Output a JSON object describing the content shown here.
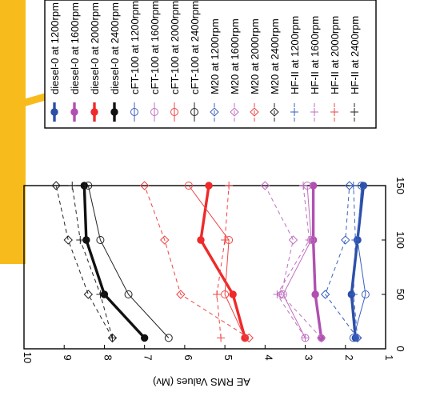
{
  "chart_data": {
    "type": "line",
    "orientation": "rotated-90-ccw",
    "ylabel": "AE RMS Values (Mv)",
    "xlabel": "",
    "xlim": [
      0,
      150
    ],
    "ylim": [
      1,
      10
    ],
    "x_ticks": [
      "0",
      "50",
      "100",
      "150"
    ],
    "y_ticks": [
      "1",
      "2",
      "3",
      "4",
      "5",
      "6",
      "7",
      "8",
      "9",
      "10"
    ],
    "x": [
      10,
      50,
      100,
      150
    ],
    "grid": false,
    "legend_position": "right",
    "series": [
      {
        "name": "diesel-0 at 1200rpm",
        "color": "#2b4ea6",
        "line": "solid-thick",
        "marker": "filled-circle",
        "values": [
          1.75,
          1.85,
          1.7,
          1.55
        ]
      },
      {
        "name": "diesel-0 at 1600rpm",
        "color": "#b050b0",
        "line": "solid-thick",
        "marker": "filled-circle",
        "values": [
          2.6,
          2.75,
          2.8,
          2.8
        ]
      },
      {
        "name": "diesel-0 at 2000rpm",
        "color": "#ee2a2a",
        "line": "solid-thick",
        "marker": "filled-circle",
        "values": [
          4.5,
          4.8,
          5.6,
          5.4
        ]
      },
      {
        "name": "diesel-0 at 2400rpm",
        "color": "#111111",
        "line": "solid-thick",
        "marker": "filled-circle",
        "values": [
          7.0,
          8.0,
          8.45,
          8.5
        ]
      },
      {
        "name": "cFT-100 at 1200rpm",
        "color": "#3a60c0",
        "line": "solid-thin",
        "marker": "open-circle",
        "values": [
          1.8,
          1.5,
          1.7,
          1.6
        ]
      },
      {
        "name": "cFT-100 at 1600rpm",
        "color": "#c070c0",
        "line": "solid-thin",
        "marker": "open-circle",
        "values": [
          3.0,
          3.55,
          2.85,
          2.95
        ]
      },
      {
        "name": "cFT-100 at 2000rpm",
        "color": "#ee4444",
        "line": "solid-thin",
        "marker": "open-circle",
        "values": [
          4.5,
          5.0,
          4.9,
          5.9
        ]
      },
      {
        "name": "cFT-100 at 2400rpm",
        "color": "#222222",
        "line": "solid-thin",
        "marker": "open-circle",
        "values": [
          6.4,
          7.4,
          8.1,
          8.4
        ]
      },
      {
        "name": "M20  at 1200rpm",
        "color": "#3a60c0",
        "line": "dashed",
        "marker": "open-diamond",
        "values": [
          1.7,
          2.5,
          2.0,
          1.9
        ]
      },
      {
        "name": "M20  at 1600rpm",
        "color": "#c070c0",
        "line": "dashed",
        "marker": "open-diamond",
        "values": [
          2.6,
          3.6,
          3.3,
          4.0
        ]
      },
      {
        "name": "M20  at 2000rpm",
        "color": "#ee4444",
        "line": "dashed",
        "marker": "open-diamond",
        "values": [
          4.4,
          6.1,
          6.5,
          7.0
        ]
      },
      {
        "name": "M20  at 2400rpm",
        "color": "#222222",
        "line": "dashed",
        "marker": "open-diamond",
        "values": [
          7.8,
          8.4,
          8.9,
          9.2
        ]
      },
      {
        "name": "HF-II at 1200rpm",
        "color": "#3a60c0",
        "line": "dashed",
        "marker": "plus",
        "values": [
          1.7,
          1.8,
          1.75,
          1.8
        ]
      },
      {
        "name": "HF-II at 1600rpm",
        "color": "#c070c0",
        "line": "dashed",
        "marker": "plus",
        "values": [
          3.0,
          3.7,
          2.9,
          3.05
        ]
      },
      {
        "name": "HF-II at 2000rpm",
        "color": "#ee4444",
        "line": "dashed",
        "marker": "plus",
        "values": [
          5.1,
          5.2,
          5.0,
          4.9
        ]
      },
      {
        "name": "HF-II at 2400rpm",
        "color": "#222222",
        "line": "dashed",
        "marker": "plus",
        "values": [
          7.8,
          8.1,
          8.6,
          8.8
        ]
      }
    ]
  },
  "colors": {
    "highlight_box": "#f7bc1b",
    "arrow": "#f7bc1b"
  }
}
